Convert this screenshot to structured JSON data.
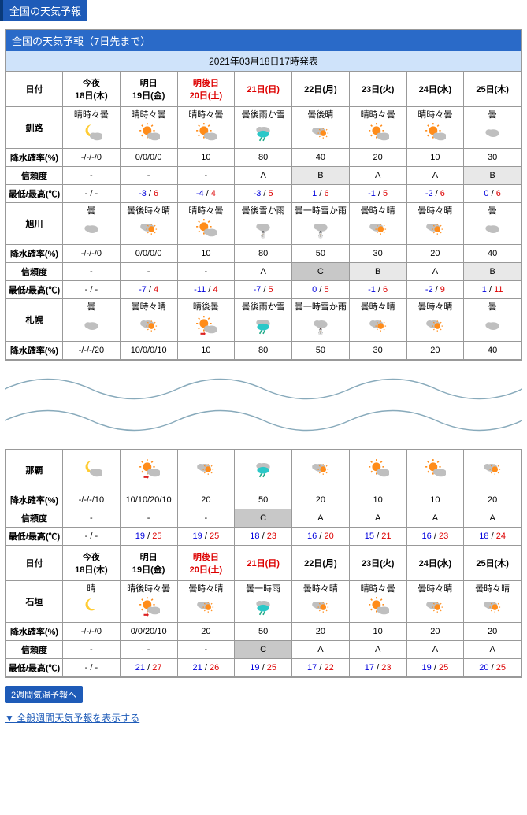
{
  "header": "全国の天気予報",
  "box_title": "全国の天気予報（7日先まで）",
  "issued": "2021年03月18日17時発表",
  "colors": {
    "header_bg": "#1e5bb8",
    "header_accent": "#0a3a7a",
    "subheader_bg": "#cfe3fa",
    "border": "#999999",
    "text_red": "#dd0000",
    "text_blue": "#0000dd",
    "shade_light": "#e8e8e8",
    "shade_dark": "#c8c8c8"
  },
  "date_label": "日付",
  "dates": [
    {
      "top": "今夜",
      "bottom": "18日(木)",
      "red": false
    },
    {
      "top": "明日",
      "bottom": "19日(金)",
      "red": false
    },
    {
      "top": "明後日",
      "bottom": "20日(土)",
      "red": true
    },
    {
      "top": "",
      "bottom": "21日(日)",
      "red": true
    },
    {
      "top": "",
      "bottom": "22日(月)",
      "red": false
    },
    {
      "top": "",
      "bottom": "23日(火)",
      "red": false
    },
    {
      "top": "",
      "bottom": "24日(水)",
      "red": false
    },
    {
      "top": "",
      "bottom": "25日(木)",
      "red": false
    }
  ],
  "row_labels": {
    "precip": "降水確率(%)",
    "conf": "信頼度",
    "temp": "最低/最高(℃)"
  },
  "cities_top": [
    {
      "name": "釧路",
      "weather": [
        {
          "txt": "晴時々曇",
          "icon": "moon-cloud"
        },
        {
          "txt": "晴時々曇",
          "icon": "sun-cloud"
        },
        {
          "txt": "晴時々曇",
          "icon": "sun-cloud"
        },
        {
          "txt": "曇後雨か雪",
          "icon": "cloud-rain"
        },
        {
          "txt": "曇後晴",
          "icon": "cloud-sun"
        },
        {
          "txt": "晴時々曇",
          "icon": "sun-cloud"
        },
        {
          "txt": "晴時々曇",
          "icon": "sun-cloud"
        },
        {
          "txt": "曇",
          "icon": "cloud"
        }
      ],
      "precip": [
        "-/-/-/0",
        "0/0/0/0",
        "10",
        "80",
        "40",
        "20",
        "10",
        "30"
      ],
      "conf": [
        "-",
        "-",
        "-",
        "A",
        "B",
        "A",
        "A",
        "B"
      ],
      "conf_shade": [
        "",
        "",
        "",
        "",
        "light",
        "",
        "",
        "light"
      ],
      "temps": [
        {
          "lo": "-",
          "hi": "-"
        },
        {
          "lo": "-3",
          "hi": "6"
        },
        {
          "lo": "-4",
          "hi": "4"
        },
        {
          "lo": "-3",
          "hi": "5"
        },
        {
          "lo": "1",
          "hi": "6"
        },
        {
          "lo": "-1",
          "hi": "5"
        },
        {
          "lo": "-2",
          "hi": "6"
        },
        {
          "lo": "0",
          "hi": "6"
        }
      ]
    },
    {
      "name": "旭川",
      "weather": [
        {
          "txt": "曇",
          "icon": "cloud"
        },
        {
          "txt": "曇後時々晴",
          "icon": "cloud-sun"
        },
        {
          "txt": "晴時々曇",
          "icon": "sun-cloud"
        },
        {
          "txt": "曇後雪か雨",
          "icon": "cloud-snow"
        },
        {
          "txt": "曇一時雪か雨",
          "icon": "cloud-snow"
        },
        {
          "txt": "曇時々晴",
          "icon": "cloud-sun"
        },
        {
          "txt": "曇時々晴",
          "icon": "cloud-sun"
        },
        {
          "txt": "曇",
          "icon": "cloud"
        }
      ],
      "precip": [
        "-/-/-/0",
        "0/0/0/0",
        "10",
        "80",
        "50",
        "30",
        "20",
        "40"
      ],
      "conf": [
        "-",
        "-",
        "-",
        "A",
        "C",
        "B",
        "A",
        "B"
      ],
      "conf_shade": [
        "",
        "",
        "",
        "",
        "dark",
        "light",
        "",
        "light"
      ],
      "temps": [
        {
          "lo": "-",
          "hi": "-"
        },
        {
          "lo": "-7",
          "hi": "4"
        },
        {
          "lo": "-11",
          "hi": "4"
        },
        {
          "lo": "-7",
          "hi": "5"
        },
        {
          "lo": "0",
          "hi": "5"
        },
        {
          "lo": "-1",
          "hi": "6"
        },
        {
          "lo": "-2",
          "hi": "9"
        },
        {
          "lo": "1",
          "hi": "11"
        }
      ]
    },
    {
      "name": "札幌",
      "weather": [
        {
          "txt": "曇",
          "icon": "cloud"
        },
        {
          "txt": "曇時々晴",
          "icon": "cloud-sun"
        },
        {
          "txt": "晴後曇",
          "icon": "sun-cloud-arr"
        },
        {
          "txt": "曇後雨か雪",
          "icon": "cloud-rain"
        },
        {
          "txt": "曇一時雪か雨",
          "icon": "cloud-snow"
        },
        {
          "txt": "曇時々晴",
          "icon": "cloud-sun"
        },
        {
          "txt": "曇時々晴",
          "icon": "cloud-sun"
        },
        {
          "txt": "曇",
          "icon": "cloud"
        }
      ],
      "precip": [
        "-/-/-/20",
        "10/0/0/10",
        "10",
        "80",
        "50",
        "30",
        "20",
        "40"
      ],
      "conf": null,
      "temps": null
    }
  ],
  "cities_bottom": [
    {
      "name": "那覇",
      "weather": [
        {
          "txt": "",
          "icon": "moon-cloud"
        },
        {
          "txt": "",
          "icon": "sun-cloud-arr"
        },
        {
          "txt": "",
          "icon": "cloud-sun"
        },
        {
          "txt": "",
          "icon": "cloud-rain"
        },
        {
          "txt": "",
          "icon": "cloud-sun"
        },
        {
          "txt": "",
          "icon": "sun-cloud"
        },
        {
          "txt": "",
          "icon": "sun-cloud"
        },
        {
          "txt": "",
          "icon": "cloud-sun"
        }
      ],
      "precip": [
        "-/-/-/10",
        "10/10/20/10",
        "20",
        "50",
        "20",
        "10",
        "10",
        "20"
      ],
      "conf": [
        "-",
        "-",
        "-",
        "C",
        "A",
        "A",
        "A",
        "A"
      ],
      "conf_shade": [
        "",
        "",
        "",
        "dark",
        "",
        "",
        "",
        ""
      ],
      "temps": [
        {
          "lo": "-",
          "hi": "-"
        },
        {
          "lo": "19",
          "hi": "25"
        },
        {
          "lo": "19",
          "hi": "25"
        },
        {
          "lo": "18",
          "hi": "23"
        },
        {
          "lo": "16",
          "hi": "20"
        },
        {
          "lo": "15",
          "hi": "21"
        },
        {
          "lo": "16",
          "hi": "23"
        },
        {
          "lo": "18",
          "hi": "24"
        }
      ]
    },
    {
      "name": "石垣",
      "weather": [
        {
          "txt": "晴",
          "icon": "moon"
        },
        {
          "txt": "晴後時々曇",
          "icon": "sun-cloud-arr"
        },
        {
          "txt": "曇時々晴",
          "icon": "cloud-sun"
        },
        {
          "txt": "曇一時雨",
          "icon": "cloud-rain"
        },
        {
          "txt": "曇時々晴",
          "icon": "cloud-sun"
        },
        {
          "txt": "晴時々曇",
          "icon": "sun-cloud"
        },
        {
          "txt": "曇時々晴",
          "icon": "cloud-sun"
        },
        {
          "txt": "曇時々晴",
          "icon": "cloud-sun"
        }
      ],
      "precip": [
        "-/-/-/0",
        "0/0/20/10",
        "20",
        "50",
        "20",
        "10",
        "20",
        "20"
      ],
      "conf": [
        "-",
        "-",
        "-",
        "C",
        "A",
        "A",
        "A",
        "A"
      ],
      "conf_shade": [
        "",
        "",
        "",
        "dark",
        "",
        "",
        "",
        ""
      ],
      "temps": [
        {
          "lo": "-",
          "hi": "-"
        },
        {
          "lo": "21",
          "hi": "27"
        },
        {
          "lo": "21",
          "hi": "26"
        },
        {
          "lo": "19",
          "hi": "25"
        },
        {
          "lo": "17",
          "hi": "22"
        },
        {
          "lo": "17",
          "hi": "23"
        },
        {
          "lo": "19",
          "hi": "25"
        },
        {
          "lo": "20",
          "hi": "25"
        }
      ]
    }
  ],
  "link_2week": "2週間気温予報へ",
  "link_general": "▼ 全般週間天気予報を表示する"
}
